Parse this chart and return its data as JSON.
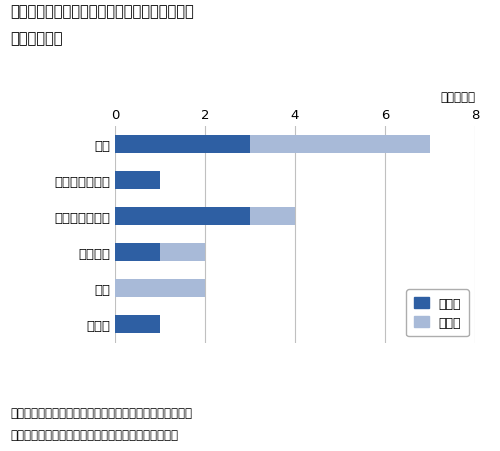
{
  "title_line1": "図３　投資優先度低下に伴い縮小した国内バリ",
  "title_line2": "ューチェイン",
  "unit_label": "（企業数）",
  "categories": [
    "営業",
    "市販後臨床研究",
    "臨床開発・薬事",
    "基礎研究",
    "製造",
    "その他"
  ],
  "values_1": [
    3,
    1,
    3,
    1,
    0,
    1
  ],
  "values_2": [
    4,
    0,
    1,
    1,
    2,
    0
  ],
  "color_1": "#2E5FA3",
  "color_2": "#A8BAD8",
  "xlim": [
    0,
    8
  ],
  "xticks": [
    0,
    2,
    4,
    6,
    8
  ],
  "legend_label_1": "１番目",
  "legend_label_2": "２番目",
  "note_line1": "注：１番目および２番目に縮小規模が大きいものを伺って",
  "note_line2": "　いる。有効回答９社（うち１社は１番目のみ回答）",
  "bg_color": "#ffffff"
}
